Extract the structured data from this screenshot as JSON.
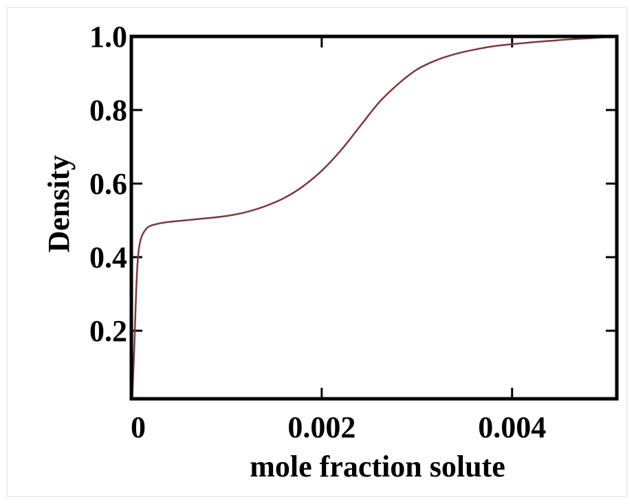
{
  "chart_data": {
    "type": "line",
    "title": "",
    "xlabel": "mole fraction solute",
    "ylabel": "Density",
    "xlim": [
      0,
      0.0051
    ],
    "ylim": [
      0.015,
      1.0
    ],
    "xticks": [
      {
        "value": 0,
        "label": "0"
      },
      {
        "value": 0.002,
        "label": "0.002"
      },
      {
        "value": 0.004,
        "label": "0.004"
      }
    ],
    "yticks": [
      {
        "value": 0.2,
        "label": "0.2"
      },
      {
        "value": 0.4,
        "label": "0.4"
      },
      {
        "value": 0.6,
        "label": "0.6"
      },
      {
        "value": 0.8,
        "label": "0.8"
      },
      {
        "value": 1.0,
        "label": "1.0"
      }
    ],
    "grid": false,
    "series": [
      {
        "color": "#7a3a3a",
        "x": [
          1e-05,
          3e-05,
          5e-05,
          7e-05,
          0.0001,
          0.00015,
          0.0002,
          0.0003,
          0.0004,
          0.0006,
          0.0008,
          0.001,
          0.0012,
          0.0014,
          0.0016,
          0.0018,
          0.002,
          0.0022,
          0.0024,
          0.0026,
          0.0028,
          0.003,
          0.0032,
          0.0034,
          0.0036,
          0.0038,
          0.004,
          0.0042,
          0.0044,
          0.0046,
          0.0048,
          0.0051
        ],
        "y": [
          0.015,
          0.15,
          0.3,
          0.4,
          0.45,
          0.475,
          0.485,
          0.492,
          0.496,
          0.501,
          0.506,
          0.512,
          0.522,
          0.538,
          0.56,
          0.592,
          0.635,
          0.69,
          0.755,
          0.82,
          0.87,
          0.91,
          0.935,
          0.952,
          0.964,
          0.973,
          0.979,
          0.984,
          0.988,
          0.992,
          0.995,
          1.0
        ]
      }
    ]
  }
}
